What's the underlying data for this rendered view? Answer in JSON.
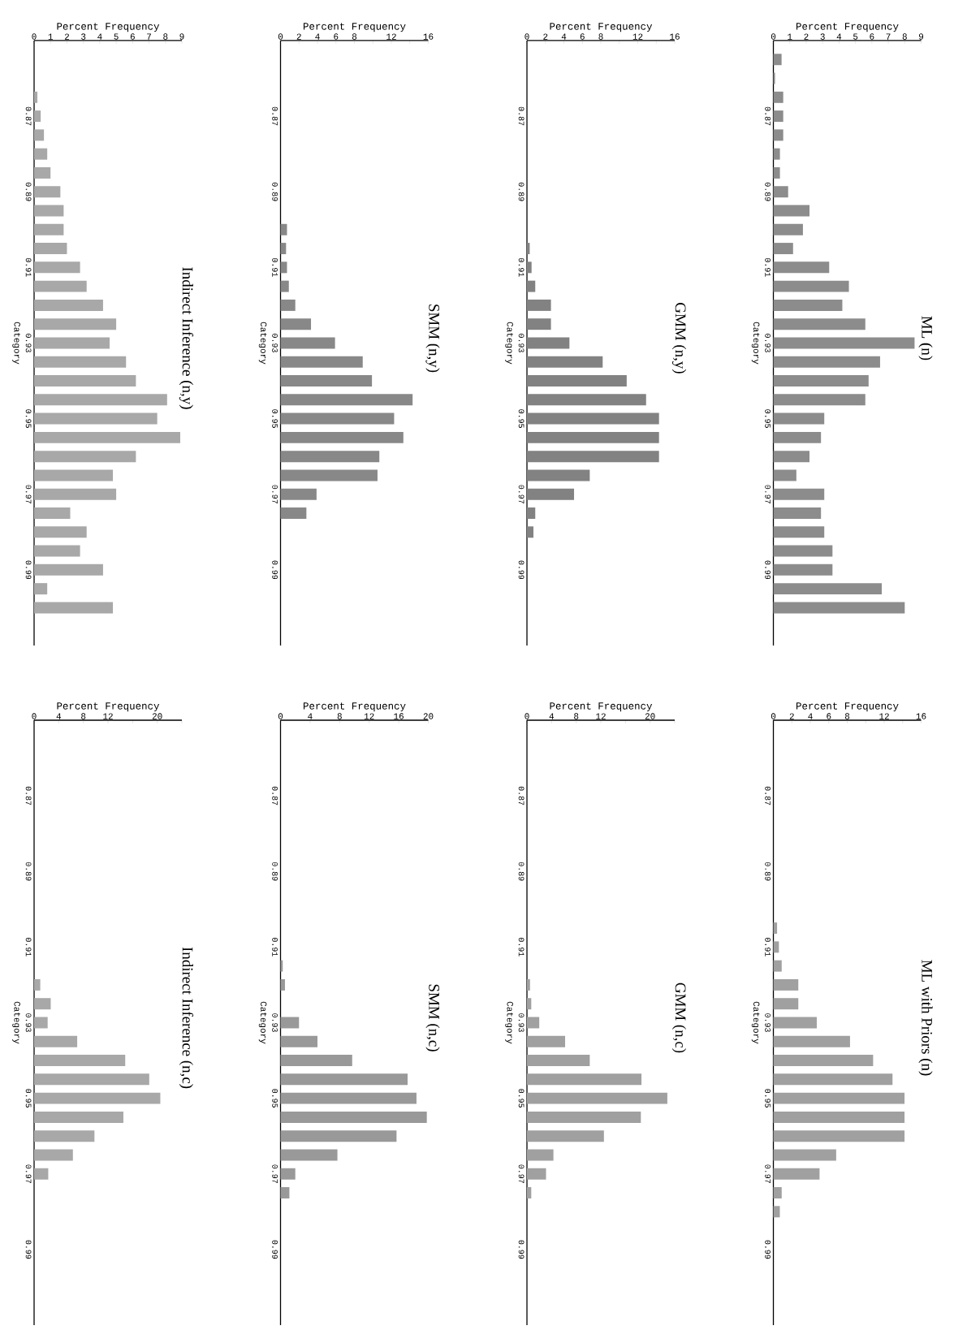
{
  "chart_data": [
    {
      "type": "bar",
      "orientation": "horizontal",
      "title": "Indirect Inference (n,y)",
      "xlabel": "Percent Frequency",
      "ylabel": "Category",
      "color": "#a8a8a8",
      "xlim": [
        0,
        9
      ],
      "xticks": [
        0,
        1,
        2,
        3,
        4,
        5,
        6,
        7,
        8,
        9
      ],
      "categories": [
        null,
        null,
        null,
        "0.87",
        null,
        null,
        null,
        "0.89",
        null,
        null,
        null,
        "0.91",
        null,
        null,
        null,
        "0.93",
        null,
        null,
        null,
        "0.95",
        null,
        null,
        null,
        "0.97",
        null,
        null,
        null,
        "0.99",
        null,
        null,
        null
      ],
      "values": [
        0,
        0,
        0.2,
        0.4,
        0.6,
        0.8,
        1.0,
        1.6,
        1.8,
        1.8,
        2.0,
        2.8,
        3.2,
        4.2,
        5.0,
        4.6,
        5.6,
        6.2,
        8.1,
        7.5,
        8.9,
        6.2,
        4.8,
        5.0,
        2.2,
        3.2,
        2.8,
        4.2,
        0.8,
        4.8,
        0
      ]
    },
    {
      "type": "bar",
      "orientation": "horizontal",
      "title": "SMM (n,y)",
      "xlabel": "Percent Frequency",
      "ylabel": "Category",
      "color": "#888888",
      "xlim": [
        0,
        16
      ],
      "xticks": [
        0,
        2,
        4,
        6,
        8,
        {
          "value": 10,
          "label": null
        },
        12,
        {
          "value": 14,
          "label": null
        },
        16
      ],
      "categories": [
        null,
        null,
        null,
        "0.87",
        null,
        null,
        null,
        "0.89",
        null,
        null,
        null,
        "0.91",
        null,
        null,
        null,
        "0.93",
        null,
        null,
        null,
        "0.95",
        null,
        null,
        null,
        "0.97",
        null,
        null,
        null,
        "0.99",
        null,
        null,
        null
      ],
      "values": [
        0,
        0,
        0,
        0,
        0,
        0,
        0,
        0,
        0,
        0.7,
        0.6,
        0.7,
        0.9,
        1.6,
        3.3,
        5.9,
        8.9,
        9.9,
        14.3,
        12.3,
        13.3,
        10.7,
        10.5,
        3.9,
        2.8,
        0,
        0,
        0,
        0,
        0,
        0
      ]
    },
    {
      "type": "bar",
      "orientation": "horizontal",
      "title": "GMM (n,y)",
      "xlabel": "Percent Frequency",
      "ylabel": "Category",
      "color": "#828282",
      "xlim": [
        0,
        16
      ],
      "xticks": [
        0,
        2,
        4,
        6,
        8,
        {
          "value": 10,
          "label": null
        },
        12,
        {
          "value": 14,
          "label": null
        },
        16
      ],
      "categories": [
        null,
        null,
        null,
        "0.87",
        null,
        null,
        null,
        "0.89",
        null,
        null,
        null,
        "0.91",
        null,
        null,
        null,
        "0.93",
        null,
        null,
        null,
        "0.95",
        null,
        null,
        null,
        "0.97",
        null,
        null,
        null,
        "0.99",
        null,
        null,
        null
      ],
      "values": [
        0,
        0,
        0,
        0,
        0,
        0,
        0,
        0,
        0,
        0,
        0.3,
        0.5,
        0.9,
        2.6,
        2.6,
        4.6,
        8.2,
        10.8,
        12.9,
        14.3,
        14.3,
        14.3,
        6.8,
        5.1,
        0.9,
        0.7,
        0,
        0,
        0,
        0,
        0
      ]
    },
    {
      "type": "bar",
      "orientation": "horizontal",
      "title": "ML (n)",
      "xlabel": "Percent Frequency",
      "ylabel": "Category",
      "color": "#8c8c8c",
      "xlim": [
        0,
        9
      ],
      "xticks": [
        0,
        1,
        2,
        3,
        4,
        5,
        6,
        7,
        8,
        9
      ],
      "categories": [
        null,
        null,
        null,
        "0.87",
        null,
        null,
        null,
        "0.89",
        null,
        null,
        null,
        "0.91",
        null,
        null,
        null,
        "0.93",
        null,
        null,
        null,
        "0.95",
        null,
        null,
        null,
        "0.97",
        null,
        null,
        null,
        "0.99",
        null,
        null,
        null
      ],
      "values": [
        0.5,
        0.1,
        0.6,
        0.6,
        0.6,
        0.4,
        0.4,
        0.9,
        2.2,
        1.8,
        1.2,
        3.4,
        4.6,
        4.2,
        5.6,
        8.6,
        6.5,
        5.8,
        5.6,
        3.1,
        2.9,
        2.2,
        1.4,
        3.1,
        2.9,
        3.1,
        3.6,
        3.6,
        6.6,
        8.0,
        0
      ]
    },
    {
      "type": "bar",
      "orientation": "horizontal",
      "title": "Indirect Inference (n,c)",
      "xlabel": "Percent Frequency",
      "ylabel": "Category",
      "color": "#a8a8a8",
      "xlim": [
        0,
        24
      ],
      "xticks": [
        0,
        4,
        8,
        12,
        {
          "value": 16,
          "label": null
        },
        20,
        {
          "value": 24,
          "label": null
        }
      ],
      "categories": [
        null,
        null,
        null,
        "0.87",
        null,
        null,
        null,
        "0.89",
        null,
        null,
        null,
        "0.91",
        null,
        null,
        null,
        "0.93",
        null,
        null,
        null,
        "0.95",
        null,
        null,
        null,
        "0.97",
        null,
        null,
        null,
        "0.99",
        null,
        null,
        null
      ],
      "values": [
        0,
        0,
        0,
        0,
        0,
        0,
        0,
        0,
        0,
        0,
        0,
        0,
        0,
        1.0,
        2.7,
        2.2,
        7.0,
        14.8,
        18.7,
        20.5,
        14.5,
        9.8,
        6.3,
        2.3,
        0,
        0,
        0,
        0,
        0,
        0,
        0
      ]
    },
    {
      "type": "bar",
      "orientation": "horizontal",
      "title": "SMM (n,c)",
      "xlabel": "Percent Frequency",
      "ylabel": "Category",
      "color": "#999999",
      "xlim": [
        0,
        20
      ],
      "xticks": [
        0,
        4,
        8,
        12,
        16,
        20
      ],
      "categories": [
        null,
        null,
        null,
        "0.87",
        null,
        null,
        null,
        "0.89",
        null,
        null,
        null,
        "0.91",
        null,
        null,
        null,
        "0.93",
        null,
        null,
        null,
        "0.95",
        null,
        null,
        null,
        "0.97",
        null,
        null,
        null,
        "0.99",
        null,
        null,
        null
      ],
      "values": [
        0,
        0,
        0,
        0,
        0,
        0,
        0,
        0,
        0,
        0,
        0,
        0,
        0.3,
        0.6,
        0,
        2.5,
        5.0,
        9.7,
        17.2,
        18.4,
        19.8,
        15.7,
        7.7,
        2.0,
        1.2,
        0,
        0,
        0,
        0,
        0,
        0
      ]
    },
    {
      "type": "bar",
      "orientation": "horizontal",
      "title": "GMM (n,c)",
      "xlabel": "Percent Frequency",
      "ylabel": "Category",
      "color": "#a0a0a0",
      "xlim": [
        0,
        24
      ],
      "xticks": [
        0,
        4,
        8,
        12,
        {
          "value": 16,
          "label": null
        },
        20,
        {
          "value": 24,
          "label": null
        }
      ],
      "categories": [
        null,
        null,
        null,
        "0.87",
        null,
        null,
        null,
        "0.89",
        null,
        null,
        null,
        "0.91",
        null,
        null,
        null,
        "0.93",
        null,
        null,
        null,
        "0.95",
        null,
        null,
        null,
        "0.97",
        null,
        null,
        null,
        "0.99",
        null,
        null,
        null
      ],
      "values": [
        0,
        0,
        0,
        0,
        0,
        0,
        0,
        0,
        0,
        0,
        0,
        0,
        0,
        0.5,
        0.7,
        2.0,
        6.2,
        10.2,
        18.6,
        22.8,
        18.5,
        12.5,
        4.3,
        3.1,
        0.7,
        0,
        0,
        0,
        0,
        0,
        0
      ]
    },
    {
      "type": "bar",
      "orientation": "horizontal",
      "title": "ML with Priors (n)",
      "xlabel": "Percent Frequency",
      "ylabel": "Category",
      "color": "#a0a0a0",
      "xlim": [
        0,
        16
      ],
      "xticks": [
        0,
        2,
        4,
        6,
        8,
        {
          "value": 10,
          "label": null
        },
        12,
        {
          "value": 14,
          "label": null
        },
        16
      ],
      "categories": [
        null,
        null,
        null,
        "0.87",
        null,
        null,
        null,
        "0.89",
        null,
        null,
        null,
        "0.91",
        null,
        null,
        null,
        "0.93",
        null,
        null,
        null,
        "0.95",
        null,
        null,
        null,
        "0.97",
        null,
        null,
        null,
        "0.99",
        null,
        null,
        null
      ],
      "values": [
        0,
        0,
        0,
        0,
        0,
        0,
        0,
        0,
        0,
        0,
        0.4,
        0.6,
        0.9,
        2.7,
        2.7,
        4.7,
        8.3,
        10.8,
        12.9,
        14.2,
        14.2,
        14.2,
        6.8,
        5.0,
        0.9,
        0.7,
        0,
        0,
        0,
        0,
        0
      ]
    }
  ]
}
